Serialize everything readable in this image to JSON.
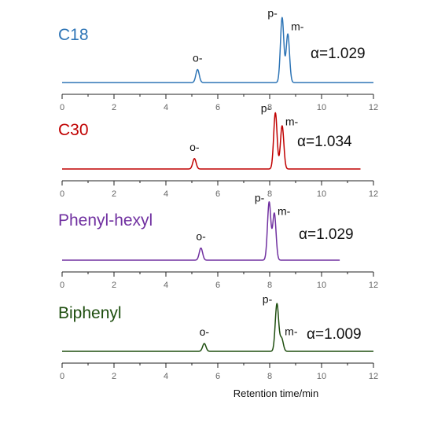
{
  "chart_data": [
    {
      "type": "line",
      "title": "C18",
      "color": "#2e75b6",
      "alpha_label": "α=1.029",
      "x_end": 12.0,
      "xlim": [
        0,
        12
      ],
      "xticks": [
        "0",
        "2",
        "4",
        "6",
        "8",
        "10",
        "12"
      ],
      "xlabel": "",
      "peaks": [
        {
          "label": "o-",
          "x": 5.22,
          "height": 0.15
        },
        {
          "label": "p-",
          "x": 8.48,
          "height": 0.75
        },
        {
          "label": "m-",
          "x": 8.7,
          "height": 0.56
        }
      ]
    },
    {
      "type": "line",
      "title": "C30",
      "color": "#c00000",
      "alpha_label": "α=1.034",
      "x_end": 11.5,
      "xlim": [
        0,
        12
      ],
      "xticks": [
        "0",
        "2",
        "4",
        "6",
        "8",
        "10",
        "12"
      ],
      "xlabel": "",
      "peaks": [
        {
          "label": "o-",
          "x": 5.1,
          "height": 0.12
        },
        {
          "label": "p-",
          "x": 8.22,
          "height": 0.65
        },
        {
          "label": "m-",
          "x": 8.48,
          "height": 0.5
        }
      ]
    },
    {
      "type": "line",
      "title": "Phenyl-hexyl",
      "color": "#7030a0",
      "alpha_label": "α=1.029",
      "x_end": 10.7,
      "xlim": [
        0,
        12
      ],
      "xticks": [
        "0",
        "2",
        "4",
        "6",
        "8",
        "10",
        "12"
      ],
      "xlabel": "",
      "peaks": [
        {
          "label": "o-",
          "x": 5.35,
          "height": 0.14
        },
        {
          "label": "p-",
          "x": 7.98,
          "height": 0.67
        },
        {
          "label": "m-",
          "x": 8.18,
          "height": 0.54
        }
      ]
    },
    {
      "type": "line",
      "title": "Biphenyl",
      "color": "#1e4e0f",
      "alpha_label": "α=1.009",
      "x_end": 12.0,
      "xlim": [
        0,
        12
      ],
      "xticks": [
        "0",
        "2",
        "4",
        "6",
        "8",
        "10",
        "12"
      ],
      "xlabel": "Retention time/min",
      "peaks": [
        {
          "label": "o-",
          "x": 5.48,
          "height": 0.09
        },
        {
          "label": "p-",
          "x": 8.28,
          "height": 0.55
        },
        {
          "label": "m-",
          "x": 8.46,
          "height": 0.15
        }
      ]
    }
  ]
}
